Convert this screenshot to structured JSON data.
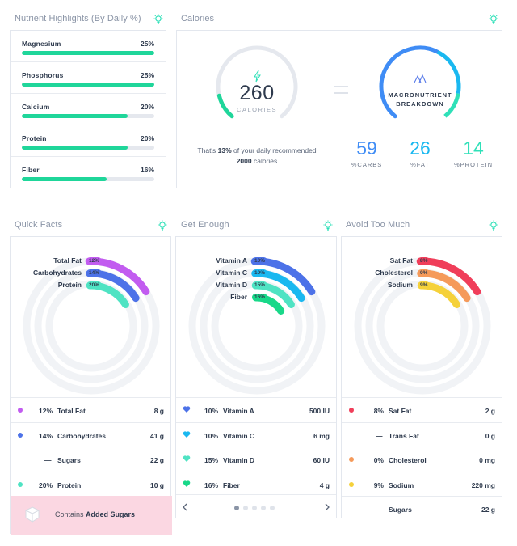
{
  "nutrient_highlights": {
    "title": "Nutrient Highlights (By Daily %)",
    "items": [
      {
        "name": "Magnesium",
        "value": "25%",
        "fill": 1.0
      },
      {
        "name": "Phosphorus",
        "value": "25%",
        "fill": 1.0
      },
      {
        "name": "Calcium",
        "value": "20%",
        "fill": 0.8
      },
      {
        "name": "Protein",
        "value": "20%",
        "fill": 0.8
      },
      {
        "name": "Fiber",
        "value": "16%",
        "fill": 0.64
      }
    ]
  },
  "calories": {
    "title": "Calories",
    "value": "260",
    "unit": "CALORIES",
    "gauge_fraction": 0.13,
    "note_pre": "That's ",
    "note_pct": "13%",
    "note_mid": " of your daily recommended ",
    "note_cal": "2000",
    "note_post": " calories",
    "macro_line1": "MACRONUTRIENT",
    "macro_line2": "BREAKDOWN",
    "macros": [
      {
        "value": "59",
        "label": "%CARBS",
        "color": "#3f8cf5"
      },
      {
        "value": "26",
        "label": "%FAT",
        "color": "#1ab8f0"
      },
      {
        "value": "14",
        "label": "%PROTEIN",
        "color": "#2fe0b8"
      }
    ]
  },
  "quick_facts": {
    "title": "Quick Facts",
    "rings": [
      {
        "label": "Total Fat",
        "pill": "12%",
        "color": "#c25cf0"
      },
      {
        "label": "Carbohydrates",
        "pill": "14%",
        "color": "#4d72e8"
      },
      {
        "label": "Protein",
        "pill": "20%",
        "color": "#4fe3c3"
      }
    ],
    "rows": [
      {
        "pct": "12%",
        "name": "Total Fat",
        "amount": "8 g",
        "color": "#c25cf0",
        "marker": "dot"
      },
      {
        "pct": "14%",
        "name": "Carbohydrates",
        "amount": "41 g",
        "color": "#4d72e8",
        "marker": "dot"
      },
      {
        "pct": "",
        "name": "Sugars",
        "amount": "22 g",
        "color": "",
        "marker": "dash"
      },
      {
        "pct": "20%",
        "name": "Protein",
        "amount": "10 g",
        "color": "#4fe3c3",
        "marker": "dot"
      }
    ],
    "sugars_pre": "Contains ",
    "sugars_bold": "Added Sugars"
  },
  "get_enough": {
    "title": "Get Enough",
    "rings": [
      {
        "label": "Vitamin A",
        "pill": "10%",
        "color": "#4d72e8"
      },
      {
        "label": "Vitamin C",
        "pill": "10%",
        "color": "#1ab8f0"
      },
      {
        "label": "Vitamin D",
        "pill": "15%",
        "color": "#4fe3c3"
      },
      {
        "label": "Fiber",
        "pill": "16%",
        "color": "#19d889"
      }
    ],
    "rows": [
      {
        "pct": "10%",
        "name": "Vitamin A",
        "amount": "500 IU",
        "color": "#4d72e8"
      },
      {
        "pct": "10%",
        "name": "Vitamin C",
        "amount": "6 mg",
        "color": "#1ab8f0"
      },
      {
        "pct": "15%",
        "name": "Vitamin D",
        "amount": "60 IU",
        "color": "#4fe3c3"
      },
      {
        "pct": "16%",
        "name": "Fiber",
        "amount": "4 g",
        "color": "#19d889"
      }
    ],
    "pager_total": 5,
    "pager_active": 0
  },
  "avoid_too_much": {
    "title": "Avoid Too Much",
    "rings": [
      {
        "label": "Sat Fat",
        "pill": "8%",
        "color": "#f03e5a"
      },
      {
        "label": "Cholesterol",
        "pill": "0%",
        "color": "#f59a5a"
      },
      {
        "label": "Sodium",
        "pill": "9%",
        "color": "#f5d13a"
      }
    ],
    "rows": [
      {
        "pct": "8%",
        "name": "Sat Fat",
        "amount": "2 g",
        "color": "#f03e5a",
        "marker": "dot"
      },
      {
        "pct": "",
        "name": "Trans Fat",
        "amount": "0 g",
        "color": "",
        "marker": "dash"
      },
      {
        "pct": "0%",
        "name": "Cholesterol",
        "amount": "0 mg",
        "color": "#f59a5a",
        "marker": "dot"
      },
      {
        "pct": "9%",
        "name": "Sodium",
        "amount": "220 mg",
        "color": "#f5d13a",
        "marker": "dot"
      },
      {
        "pct": "",
        "name": "Sugars",
        "amount": "22 g",
        "color": "",
        "marker": "dash"
      }
    ]
  }
}
